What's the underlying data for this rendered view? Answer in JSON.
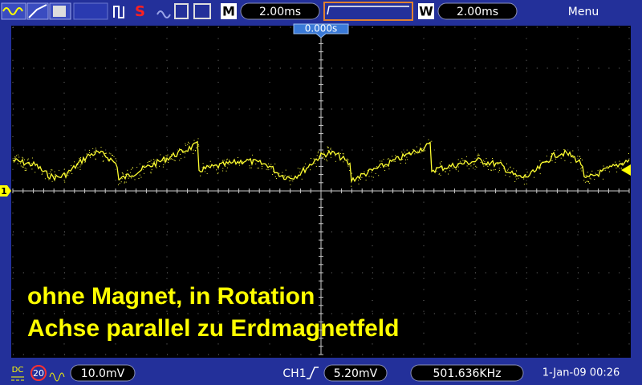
{
  "top_bar": {
    "mode_label": "M",
    "time_base": "2.00ms",
    "window_label": "W",
    "window_time_base": "2.00ms",
    "menu": "Menu"
  },
  "screen": {
    "trigger_position": "0.000s",
    "channel_marker": "1",
    "annotation": [
      "ohne Magnet, in Rotation",
      "Achse parallel zu Erdmagnetfeld"
    ]
  },
  "bottom_bar": {
    "coupling": "DC",
    "bandwidth_limit": "20",
    "volts_per_div": "10.0mV",
    "trigger_source": "CH1",
    "trigger_level": "5.20mV",
    "frequency": "501.636KHz",
    "datetime": "1-Jan-09 00:26"
  }
}
